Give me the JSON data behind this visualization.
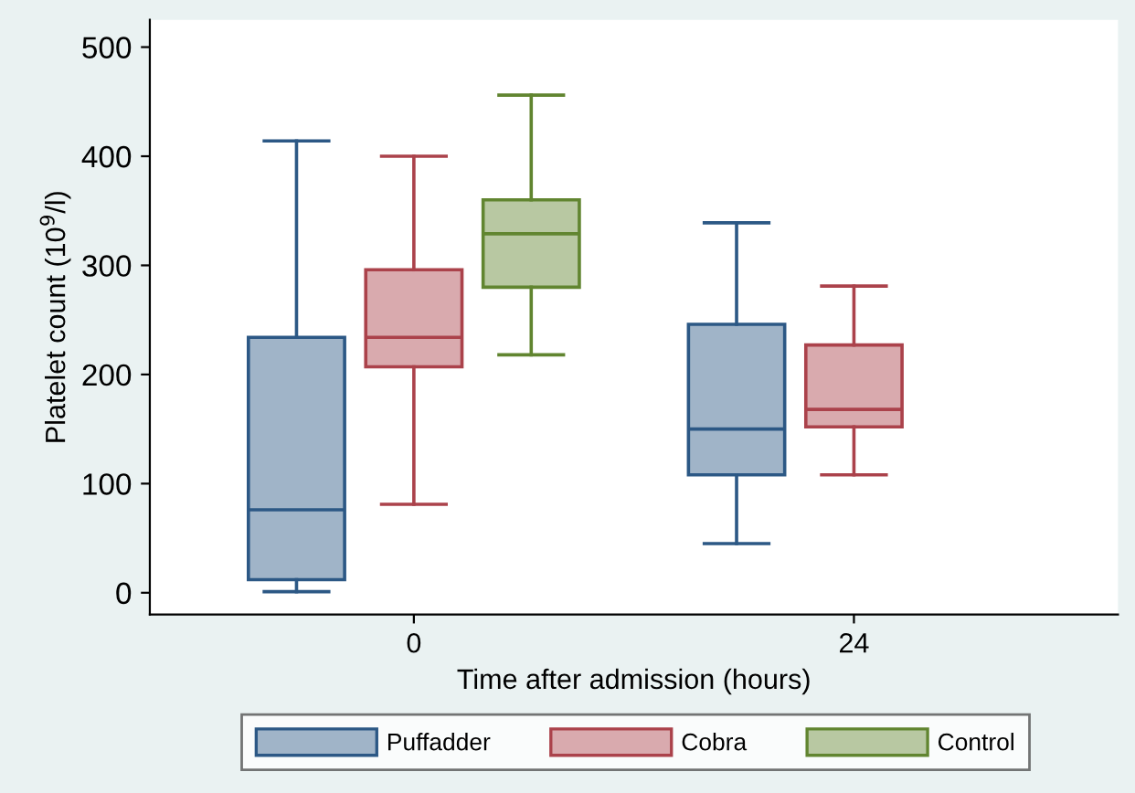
{
  "chart_data": {
    "type": "box",
    "xlabel": "Time after admission (hours)",
    "ylabel": "Platelet count (10$^{9}$/l)",
    "categories": [
      "0",
      "24"
    ],
    "series": [
      {
        "name": "Puffadder",
        "color": "#a0b4c8",
        "boxes": [
          {
            "low": 1,
            "q1": 12,
            "median": 76,
            "q3": 234,
            "high": 414
          },
          {
            "low": 45,
            "q1": 108,
            "median": 150,
            "q3": 246,
            "high": 339
          }
        ]
      },
      {
        "name": "Cobra",
        "color": "#d9aaae",
        "boxes": [
          {
            "low": 81,
            "q1": 207,
            "median": 234,
            "q3": 296,
            "high": 400
          },
          {
            "low": 108,
            "q1": 152,
            "median": 168,
            "q3": 227,
            "high": 281
          }
        ]
      },
      {
        "name": "Control",
        "color": "#b8c8a2",
        "boxes": [
          {
            "low": 218,
            "q1": 280,
            "median": 329,
            "q3": 360,
            "high": 456
          },
          null
        ]
      }
    ],
    "ylim": [
      -20,
      525
    ],
    "yticks": [
      0,
      100,
      200,
      300,
      400,
      500
    ],
    "grid": false,
    "legend": "bottom"
  }
}
